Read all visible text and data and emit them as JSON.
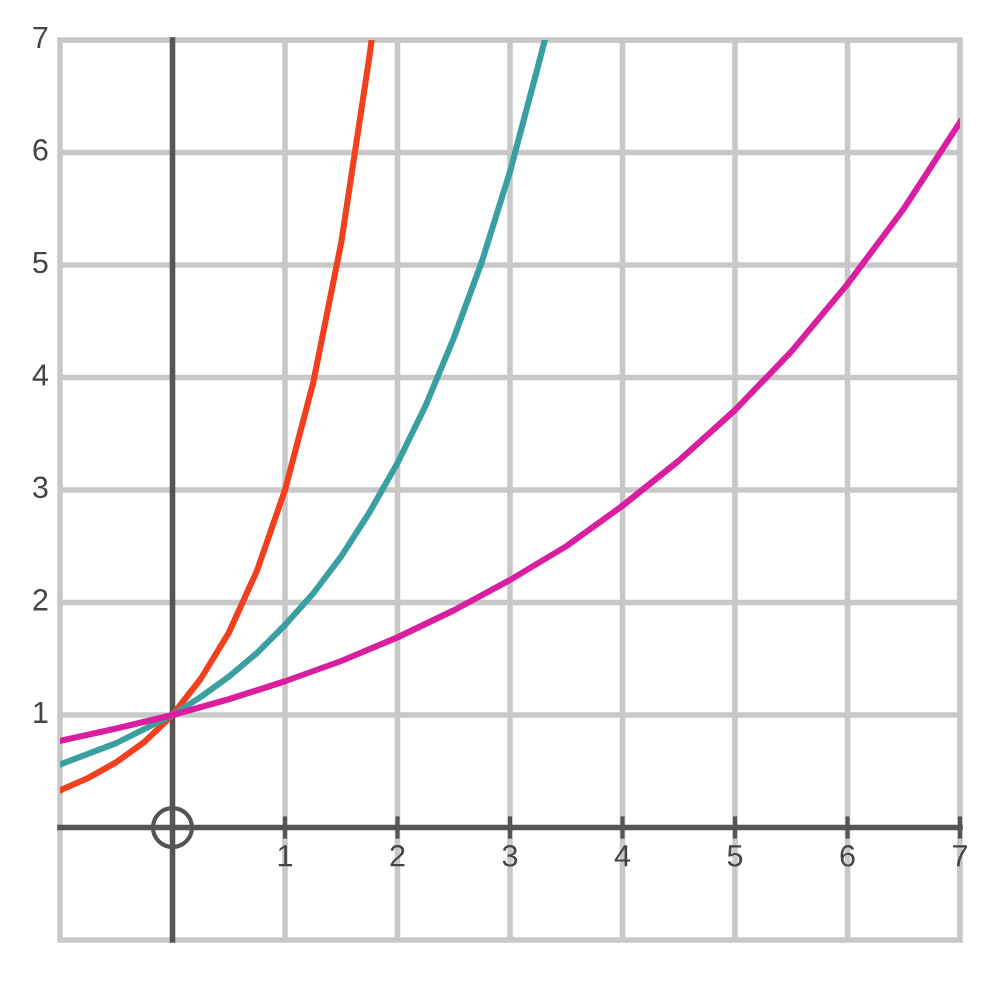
{
  "chart_data": {
    "type": "line",
    "xlim": [
      -1,
      7
    ],
    "ylim": [
      -1,
      7
    ],
    "xticks": [
      1,
      2,
      3,
      4,
      5,
      6,
      7
    ],
    "yticks": [
      1,
      2,
      3,
      4,
      5,
      6,
      7
    ],
    "grid": true,
    "marker": "none",
    "line_style": "solid",
    "series": [
      {
        "color": "#f0401e",
        "x": [
          -1,
          -0.75,
          -0.5,
          -0.25,
          0,
          0.25,
          0.5,
          0.75,
          1,
          1.25,
          1.5,
          1.75,
          1.77
        ],
        "values": [
          0.33,
          0.44,
          0.58,
          0.76,
          1,
          1.32,
          1.73,
          2.28,
          3,
          3.95,
          5.2,
          6.85,
          7
        ]
      },
      {
        "color": "#3a9fa0",
        "x": [
          -1,
          -0.5,
          0,
          0.25,
          0.5,
          0.75,
          1,
          1.25,
          1.5,
          1.75,
          2,
          2.25,
          2.5,
          2.75,
          3,
          3.25,
          3.31
        ],
        "values": [
          0.56,
          0.75,
          1,
          1.16,
          1.34,
          1.55,
          1.8,
          2.08,
          2.41,
          2.8,
          3.24,
          3.75,
          4.35,
          5.03,
          5.83,
          6.77,
          7
        ]
      },
      {
        "color": "#d91ea0",
        "x": [
          -1,
          -0.5,
          0,
          0.5,
          1,
          1.5,
          2,
          2.5,
          3,
          3.5,
          4,
          4.5,
          5,
          5.5,
          6,
          6.5,
          7
        ],
        "values": [
          0.77,
          0.88,
          1,
          1.14,
          1.3,
          1.48,
          1.69,
          1.93,
          2.2,
          2.5,
          2.86,
          3.26,
          3.71,
          4.23,
          4.83,
          5.5,
          6.27
        ]
      }
    ]
  }
}
